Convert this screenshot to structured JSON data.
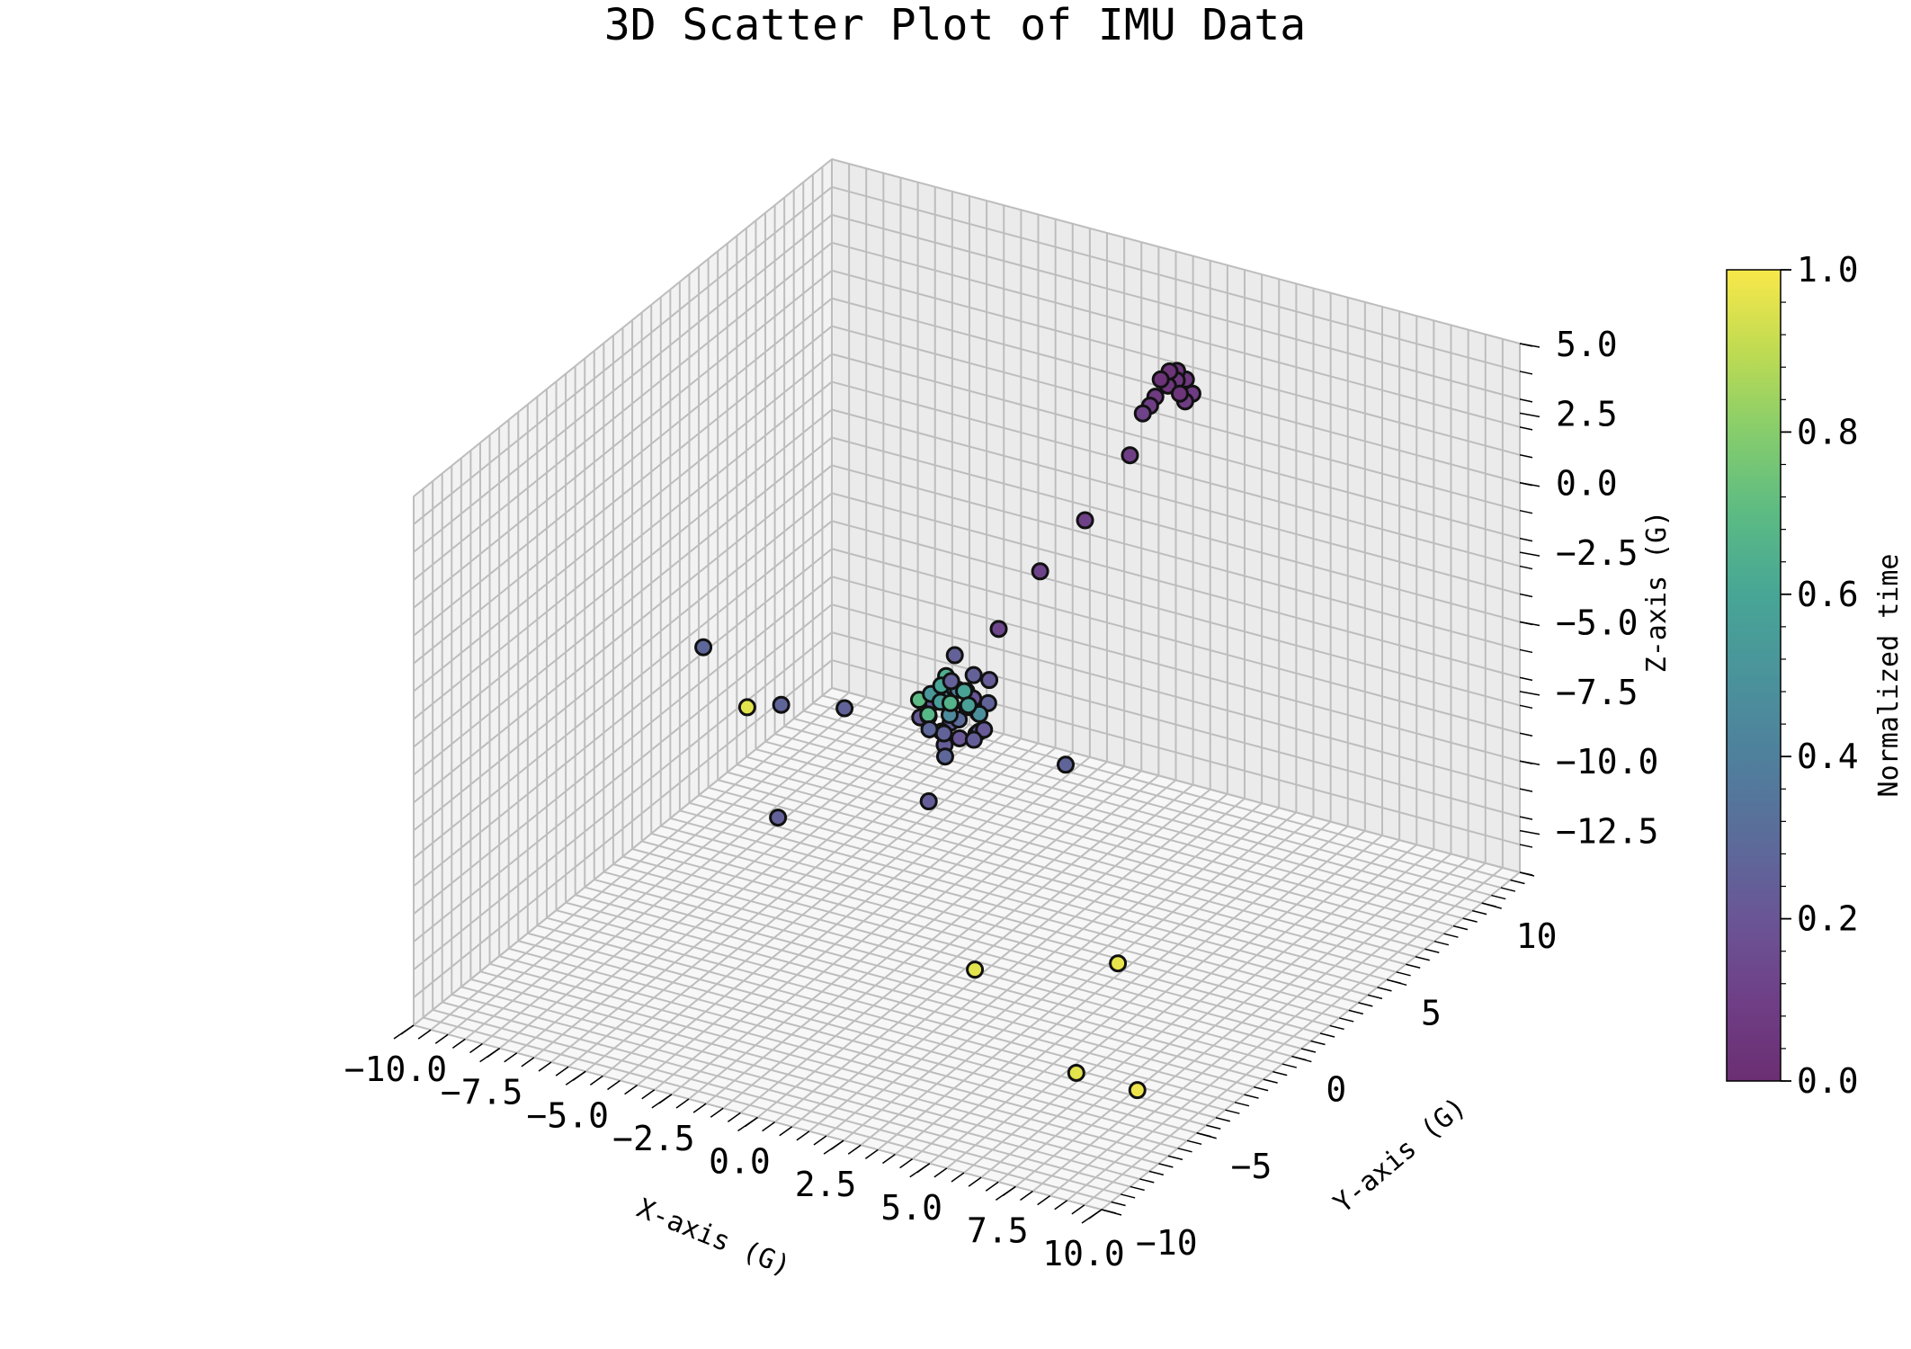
{
  "chart_data": {
    "type": "scatter",
    "projection": "3d",
    "title": "3D Scatter Plot of IMU Data",
    "xlabel": "X-axis (G)",
    "ylabel": "Y-axis (G)",
    "zlabel": "Z-axis (G)",
    "xlim": [
      -10,
      10
    ],
    "ylim": [
      -10,
      12
    ],
    "zlim": [
      -14,
      5
    ],
    "x_ticks": [
      "−10.0",
      "−7.5",
      "−5.0",
      "−2.5",
      "0.0",
      "2.5",
      "5.0",
      "7.5",
      "10.0"
    ],
    "y_ticks": [
      "−10",
      "−5",
      "0",
      "5",
      "10"
    ],
    "z_ticks": [
      "5.0",
      "2.5",
      "0.0",
      "−2.5",
      "−5.0",
      "−7.5",
      "−10.0",
      "−12.5"
    ],
    "grid": true,
    "colormap": "viridis",
    "colorbar": {
      "label": "Normalized time",
      "range": [
        0,
        1
      ],
      "ticks": [
        "0.0",
        "0.2",
        "0.4",
        "0.6",
        "0.8",
        "1.0"
      ]
    },
    "points": [
      {
        "x": 0.6,
        "y": 10.5,
        "z": 1.2,
        "t": 0.05
      },
      {
        "x": 0.8,
        "y": 10.6,
        "z": 1.4,
        "t": 0.06
      },
      {
        "x": 1.0,
        "y": 10.4,
        "z": 1.1,
        "t": 0.04
      },
      {
        "x": 0.4,
        "y": 10.2,
        "z": 0.9,
        "t": 0.07
      },
      {
        "x": 0.7,
        "y": 10.8,
        "z": 1.6,
        "t": 0.05
      },
      {
        "x": 1.2,
        "y": 10.7,
        "z": 1.0,
        "t": 0.08
      },
      {
        "x": 0.5,
        "y": 10.3,
        "z": 1.5,
        "t": 0.03
      },
      {
        "x": 0.9,
        "y": 10.9,
        "z": 1.3,
        "t": 0.06
      },
      {
        "x": 0.3,
        "y": 10.1,
        "z": 0.6,
        "t": 0.1
      },
      {
        "x": 1.1,
        "y": 10.5,
        "z": 0.8,
        "t": 0.09
      },
      {
        "x": 0.2,
        "y": 9.9,
        "z": 0.4,
        "t": 0.12
      },
      {
        "x": 0.7,
        "y": 10.4,
        "z": 1.8,
        "t": 0.04
      },
      {
        "x": 0.6,
        "y": 8.5,
        "z": -0.2,
        "t": 0.1
      },
      {
        "x": 0.4,
        "y": 6.5,
        "z": -1.5,
        "t": 0.11
      },
      {
        "x": 0.2,
        "y": 4.5,
        "z": -2.3,
        "t": 0.12
      },
      {
        "x": 0.1,
        "y": 2.5,
        "z": -3.3,
        "t": 0.13
      },
      {
        "x": 0.1,
        "y": 0.8,
        "z": -4.6,
        "t": 0.3
      },
      {
        "x": -0.3,
        "y": 0.2,
        "z": -4.2,
        "t": 0.6
      },
      {
        "x": 0.2,
        "y": 0.5,
        "z": -4.4,
        "t": 0.58
      },
      {
        "x": -0.1,
        "y": -0.2,
        "z": -4.5,
        "t": 0.55
      },
      {
        "x": 0.4,
        "y": 0.3,
        "z": -4.8,
        "t": 0.62
      },
      {
        "x": -0.5,
        "y": 0.6,
        "z": -4.9,
        "t": 0.5
      },
      {
        "x": 0.0,
        "y": 0.1,
        "z": -5.1,
        "t": 0.45
      },
      {
        "x": 0.3,
        "y": -0.4,
        "z": -4.3,
        "t": 0.66
      },
      {
        "x": -0.2,
        "y": 0.9,
        "z": -4.7,
        "t": 0.4
      },
      {
        "x": 0.5,
        "y": 0.7,
        "z": -5.2,
        "t": 0.35
      },
      {
        "x": -0.4,
        "y": -0.3,
        "z": -5.0,
        "t": 0.68
      },
      {
        "x": 0.1,
        "y": 0.4,
        "z": -5.4,
        "t": 0.3
      },
      {
        "x": -0.6,
        "y": 0.2,
        "z": -4.6,
        "t": 0.52
      },
      {
        "x": 0.6,
        "y": 0.0,
        "z": -4.5,
        "t": 0.57
      },
      {
        "x": -0.2,
        "y": -0.6,
        "z": -5.3,
        "t": 0.28
      },
      {
        "x": 0.2,
        "y": 1.0,
        "z": -4.1,
        "t": 0.25
      },
      {
        "x": -0.7,
        "y": 0.5,
        "z": -5.1,
        "t": 0.22
      },
      {
        "x": 0.7,
        "y": 0.4,
        "z": -5.0,
        "t": 0.48
      },
      {
        "x": -0.1,
        "y": 0.3,
        "z": -4.9,
        "t": 0.95
      },
      {
        "x": -0.5,
        "y": -0.1,
        "z": -5.2,
        "t": 0.97
      },
      {
        "x": 0.3,
        "y": 0.8,
        "z": -4.8,
        "t": 0.2
      },
      {
        "x": 0.0,
        "y": -0.2,
        "z": -5.6,
        "t": 0.26
      },
      {
        "x": -0.3,
        "y": 0.7,
        "z": -5.8,
        "t": 0.24
      },
      {
        "x": 0.4,
        "y": -0.1,
        "z": -5.7,
        "t": 0.21
      },
      {
        "x": -0.4,
        "y": 0.4,
        "z": -6.0,
        "t": 0.23
      },
      {
        "x": 0.5,
        "y": 0.6,
        "z": -5.9,
        "t": 0.27
      },
      {
        "x": 0.8,
        "y": 0.2,
        "z": -5.5,
        "t": 0.25
      },
      {
        "x": -0.8,
        "y": 0.0,
        "z": -5.4,
        "t": 0.22
      },
      {
        "x": 0.2,
        "y": -0.5,
        "z": -6.2,
        "t": 0.28
      },
      {
        "x": -0.2,
        "y": 0.2,
        "z": -6.3,
        "t": 0.24
      },
      {
        "x": 0.9,
        "y": 0.5,
        "z": -4.6,
        "t": 0.26
      },
      {
        "x": 0.6,
        "y": 1.1,
        "z": -4.2,
        "t": 0.23
      },
      {
        "x": -0.6,
        "y": 1.0,
        "z": -4.4,
        "t": 0.64
      },
      {
        "x": 0.1,
        "y": 0.0,
        "z": -3.8,
        "t": 0.25
      },
      {
        "x": -1.0,
        "y": 0.3,
        "z": -5.0,
        "t": 0.7
      },
      {
        "x": 1.0,
        "y": 0.1,
        "z": -5.3,
        "t": 0.22
      },
      {
        "x": -0.9,
        "y": 2.0,
        "z": -4.3,
        "t": 0.25
      },
      {
        "x": 1.2,
        "y": -0.8,
        "z": -5.1,
        "t": 0.24
      },
      {
        "x": -6.0,
        "y": -2.0,
        "z": -3.5,
        "t": 0.28
      },
      {
        "x": -5.0,
        "y": -1.5,
        "z": -5.6,
        "t": 0.96
      },
      {
        "x": -4.4,
        "y": -0.8,
        "z": -5.7,
        "t": 0.27
      },
      {
        "x": -3.0,
        "y": 0.0,
        "z": -5.8,
        "t": 0.26
      },
      {
        "x": -3.0,
        "y": -3.5,
        "z": -7.8,
        "t": 0.25
      },
      {
        "x": 0.0,
        "y": -1.0,
        "z": -7.6,
        "t": 0.24
      },
      {
        "x": 2.6,
        "y": 1.5,
        "z": -6.8,
        "t": 0.27
      },
      {
        "x": 3.0,
        "y": -4.0,
        "z": -11.0,
        "t": 0.96
      },
      {
        "x": 5.5,
        "y": -1.0,
        "z": -11.6,
        "t": 0.97
      },
      {
        "x": 6.5,
        "y": -5.0,
        "z": -13.0,
        "t": 0.96
      },
      {
        "x": 8.0,
        "y": -4.5,
        "z": -13.4,
        "t": 0.98
      }
    ]
  }
}
